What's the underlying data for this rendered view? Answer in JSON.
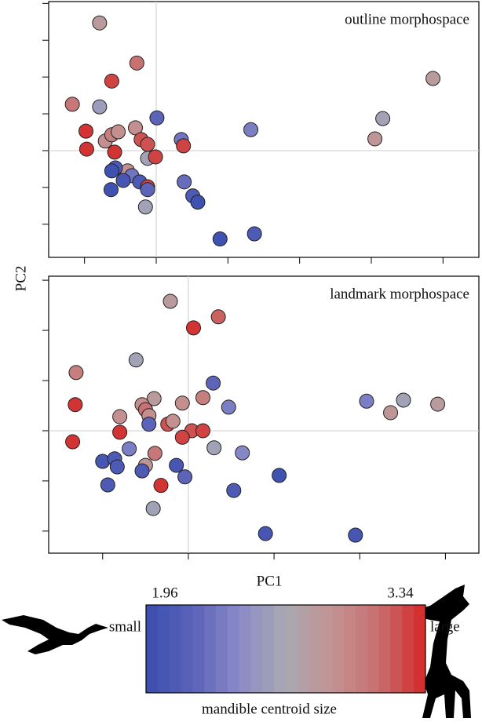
{
  "chart_data": [
    {
      "type": "scatter",
      "title": "outline morphospace",
      "x": [
        -0.79,
        -0.27,
        -0.62,
        -1.17,
        -0.79,
        3.86,
        3.16,
        3.05,
        1.32,
        0.01,
        -0.98,
        -0.97,
        -0.71,
        -0.62,
        -0.53,
        -0.58,
        -0.29,
        -0.21,
        -0.12,
        -0.12,
        -0.01,
        0.35,
        0.38,
        -0.4,
        -0.57,
        -0.62,
        -0.34,
        -0.46,
        -0.23,
        -0.12,
        -0.12,
        -0.63,
        -0.15,
        0.39,
        0.51,
        0.58,
        0.89,
        1.37
      ],
      "values": [
        3.47,
        2.38,
        1.89,
        1.26,
        1.19,
        1.96,
        0.87,
        0.32,
        0.57,
        0.89,
        0.53,
        0.04,
        0.26,
        0.43,
        0.51,
        -0.04,
        0.62,
        0.3,
        0.17,
        -0.21,
        -0.17,
        0.3,
        0.13,
        -0.55,
        -0.47,
        -0.55,
        -0.68,
        -0.81,
        -0.85,
        -0.98,
        -1.06,
        -1.06,
        -1.53,
        -0.85,
        -1.23,
        -1.4,
        -2.4,
        -2.26
      ],
      "color_values": [
        2.8,
        3.1,
        3.25,
        3.05,
        2.55,
        2.8,
        2.6,
        2.85,
        2.35,
        2.2,
        3.3,
        3.3,
        2.9,
        3.0,
        2.9,
        3.3,
        2.9,
        3.2,
        3.2,
        2.6,
        3.25,
        2.3,
        3.25,
        2.9,
        2.1,
        2.0,
        2.3,
        2.05,
        2.1,
        3.25,
        2.2,
        2.0,
        2.6,
        2.25,
        2.1,
        2.0,
        2.0,
        2.1
      ],
      "xlim": [
        -1.5,
        4.5
      ],
      "xticks": [
        -1,
        0,
        1,
        2,
        3,
        4
      ],
      "ylim": [
        -2.9,
        4.05
      ],
      "yticks": [
        -2,
        -1,
        0,
        1,
        2,
        3,
        4
      ],
      "zero_lines": true
    },
    {
      "type": "scatter",
      "title": "landmark morphospace",
      "x": [
        -0.21,
        0.06,
        0.35,
        -1.31,
        -1.32,
        -1.35,
        -0.61,
        0.29,
        0.47,
        0.17,
        -0.07,
        -0.4,
        -0.54,
        -0.5,
        -0.46,
        -0.46,
        -0.24,
        -0.18,
        -0.8,
        -0.8,
        0.04,
        0.17,
        -0.07,
        0.3,
        -0.69,
        -0.39,
        0.63,
        -1.0,
        -0.86,
        -0.83,
        -0.5,
        -0.54,
        -0.14,
        -0.04,
        -0.32,
        -0.94,
        -0.41,
        0.53,
        1.06,
        0.9,
        1.95,
        2.08,
        2.36,
        2.51,
        2.91
      ],
      "values": [
        2.58,
        2.05,
        2.27,
        1.16,
        0.52,
        -0.22,
        1.41,
        0.95,
        0.47,
        0.66,
        0.55,
        0.64,
        0.52,
        0.42,
        0.3,
        0.13,
        0.13,
        0.19,
        0.28,
        -0.03,
        0.0,
        0.0,
        -0.13,
        -0.34,
        -0.36,
        -0.45,
        -0.44,
        -0.61,
        -0.56,
        -0.72,
        -0.69,
        -0.8,
        -0.69,
        -0.92,
        -1.09,
        -1.08,
        -1.55,
        -1.19,
        -0.89,
        -2.05,
        -2.08,
        0.59,
        0.36,
        0.61,
        0.53
      ],
      "color_values": [
        2.8,
        3.3,
        3.15,
        3.0,
        3.3,
        3.3,
        2.6,
        2.2,
        2.35,
        3.0,
        2.9,
        2.8,
        2.9,
        3.1,
        2.9,
        2.2,
        3.2,
        2.9,
        2.9,
        3.3,
        3.2,
        3.25,
        3.25,
        2.6,
        2.35,
        3.05,
        2.4,
        2.05,
        2.1,
        2.1,
        2.85,
        2.1,
        2.05,
        2.2,
        3.3,
        2.1,
        2.6,
        2.1,
        2.0,
        2.05,
        2.05,
        2.35,
        2.85,
        2.6,
        2.8
      ],
      "xlim": [
        -1.63,
        3.39
      ],
      "xticks": [
        -1,
        0,
        1,
        2,
        3
      ],
      "ylim": [
        -2.44,
        3.08
      ],
      "yticks": [
        -2,
        -1,
        0,
        1,
        2,
        3
      ],
      "zero_lines": true
    }
  ],
  "x_label": "PC1",
  "y_label": "PC2",
  "colorbar": {
    "label": "mandible centroid size",
    "low_label": "small",
    "high_label": "large",
    "lim": [
      1.96,
      3.34
    ],
    "ticks": [
      1.96,
      3.34
    ],
    "colormap": [
      "#3a4fb0",
      "#5a62b8",
      "#8a8ac8",
      "#a9a9b2",
      "#c29292",
      "#c96e6e",
      "#d42828"
    ]
  }
}
